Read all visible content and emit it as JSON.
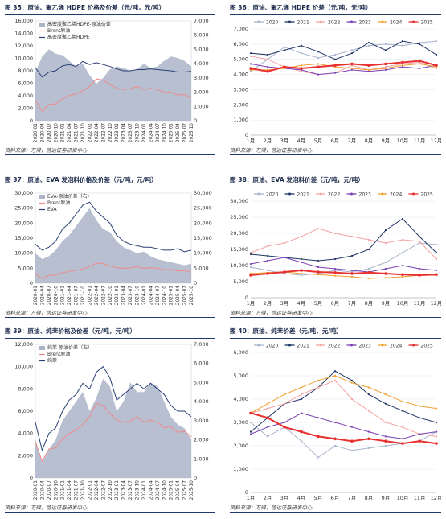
{
  "panels": [
    {
      "title": "图 35：原油、聚乙烯 HDPE 价格及价差（元/吨，元/吨）",
      "source": "资料来源：万得，信达证券研发中心",
      "chart_data": {
        "type": "area+line",
        "categories": [
          "2020-01",
          "2020-04",
          "2020-07",
          "2020-10",
          "2021-01",
          "2021-04",
          "2021-07",
          "2021-10",
          "2022-01",
          "2022-04",
          "2022-07",
          "2022-10",
          "2023-01",
          "2023-04",
          "2023-07",
          "2023-10",
          "2024-01",
          "2024-04",
          "2024-07",
          "2024-10",
          "2025-01",
          "2025-04",
          "2025-07",
          "2025-10"
        ],
        "ylim_left": [
          0,
          16000
        ],
        "yticks_left": [
          0,
          2000,
          4000,
          6000,
          8000,
          10000,
          12000,
          14000,
          16000
        ],
        "ylim_right": [
          0,
          7000
        ],
        "yticks_right": [
          0,
          1000,
          2000,
          3000,
          4000,
          5000,
          6000,
          7000
        ],
        "legend": "top-left",
        "series": [
          {
            "name": "高密度聚乙烯HDPE-原油价差",
            "kind": "area",
            "axis": "right",
            "color": "#aab4c8",
            "values": [
              3400,
              4500,
              5000,
              4700,
              4600,
              4200,
              3800,
              4000,
              3200,
              2600,
              3000,
              3600,
              3800,
              3700,
              3500,
              3600,
              4000,
              3700,
              3800,
              4200,
              4500,
              4400,
              4200,
              3800
            ]
          },
          {
            "name": "Brent原油",
            "kind": "line",
            "axis": "left",
            "color": "#f08a8a",
            "values": [
              3300,
              1500,
              2600,
              2700,
              3500,
              4000,
              4300,
              4800,
              5500,
              6700,
              6500,
              5800,
              5200,
              5000,
              5100,
              5500,
              5000,
              5200,
              5000,
              4500,
              4600,
              4100,
              4200,
              3700
            ]
          },
          {
            "name": "高密度聚乙烯HDPE",
            "kind": "line",
            "axis": "left",
            "color": "#2a3f73",
            "values": [
              8500,
              7000,
              7800,
              8000,
              8800,
              9000,
              8700,
              9500,
              9000,
              9300,
              9000,
              8700,
              8300,
              8000,
              8000,
              8200,
              8200,
              8300,
              8200,
              8100,
              8000,
              7800,
              7800,
              7900
            ]
          }
        ]
      }
    },
    {
      "title": "图 36：原油、聚乙烯 HDPE 价差（元/吨，元/吨）",
      "source": "资料来源：万得，信达证券研发中心",
      "chart_data": {
        "type": "line",
        "categories": [
          "1月",
          "2月",
          "3月",
          "4月",
          "5月",
          "6月",
          "7月",
          "8月",
          "9月",
          "10月",
          "11月",
          "12月"
        ],
        "ylim": [
          0,
          7000
        ],
        "yticks": [
          0,
          1000,
          2000,
          3000,
          4000,
          5000,
          6000,
          7000
        ],
        "legend": "top",
        "series": [
          {
            "name": "2020",
            "color": "#a9b3cc",
            "values": [
              4200,
              5000,
              5800,
              5400,
              5100,
              5300,
              5600,
              5900,
              6000,
              5900,
              6100,
              6200
            ]
          },
          {
            "name": "2021",
            "color": "#1f3566",
            "values": [
              5400,
              5300,
              5600,
              5900,
              5500,
              5000,
              5400,
              6100,
              5600,
              6200,
              6000,
              5300
            ]
          },
          {
            "name": "2022",
            "color": "#f4a3a3",
            "values": [
              5200,
              5000,
              4500,
              4200,
              4000,
              4100,
              4600,
              4300,
              4500,
              4700,
              4800,
              4400
            ]
          },
          {
            "name": "2023",
            "color": "#7b3fb5",
            "values": [
              4700,
              4500,
              4400,
              4300,
              4000,
              4100,
              4300,
              4200,
              4300,
              4500,
              4400,
              4600
            ]
          },
          {
            "name": "2024",
            "color": "#f0a030",
            "values": [
              4300,
              4300,
              4400,
              4600,
              4700,
              4500,
              4400,
              4300,
              4400,
              4600,
              4700,
              4500
            ]
          },
          {
            "name": "2025",
            "color": "#e83030",
            "values": [
              4400,
              4200,
              4500,
              4400,
              4500,
              4600,
              4700,
              4600,
              4700,
              4800,
              4900,
              4600
            ]
          }
        ]
      }
    },
    {
      "title": "图 37：原油、EVA 发泡料价格及价差（元/吨，元/吨）",
      "source": "资料来源：万得，信达证券研发中心",
      "chart_data": {
        "type": "area+line",
        "categories": [
          "2020-01",
          "2020-04",
          "2020-07",
          "2020-10",
          "2021-01",
          "2021-04",
          "2021-07",
          "2021-10",
          "2022-01",
          "2022-04",
          "2022-07",
          "2022-10",
          "2023-01",
          "2023-04",
          "2023-07",
          "2023-10",
          "2024-01",
          "2024-04",
          "2024-07",
          "2024-10",
          "2025-01",
          "2025-04",
          "2025-07",
          "2025-10"
        ],
        "ylim_left": [
          0,
          30000
        ],
        "yticks_left": [
          0,
          5000,
          10000,
          15000,
          20000,
          25000,
          30000
        ],
        "ylim_right": [
          0,
          30000
        ],
        "yticks_right": [
          0,
          5000,
          10000,
          15000,
          20000,
          25000,
          30000
        ],
        "legend": "top-left",
        "series": [
          {
            "name": "EVA-原油价差（右）",
            "kind": "area",
            "axis": "right",
            "color": "#aab4c8",
            "values": [
              10000,
              8000,
              9000,
              11000,
              14000,
              16000,
              19000,
              22000,
              25000,
              21000,
              18000,
              17000,
              14000,
              12000,
              11000,
              10000,
              10500,
              9000,
              8000,
              7500,
              7000,
              6500,
              6000,
              6500
            ]
          },
          {
            "name": "Brent原油",
            "kind": "line",
            "axis": "left",
            "color": "#f08a8a",
            "values": [
              3300,
              1500,
              2600,
              2700,
              3500,
              4000,
              4300,
              4800,
              5500,
              6700,
              6500,
              5800,
              5200,
              5000,
              5100,
              5500,
              5000,
              5200,
              5000,
              4500,
              4600,
              4100,
              4200,
              3700
            ]
          },
          {
            "name": "EVA",
            "kind": "line",
            "axis": "left",
            "color": "#2a3f73",
            "values": [
              13000,
              11000,
              12000,
              14000,
              18000,
              20000,
              23000,
              26000,
              27000,
              24000,
              22000,
              20000,
              16000,
              14000,
              13000,
              12500,
              12000,
              12000,
              11500,
              11000,
              11000,
              11500,
              10500,
              11000
            ]
          }
        ]
      }
    },
    {
      "title": "图 38：原油、EVA 发泡料价差（元/吨，元/吨）",
      "source": "资料来源：万得，信达证券研发中心",
      "chart_data": {
        "type": "line",
        "categories": [
          "1月",
          "2月",
          "3月",
          "4月",
          "5月",
          "6月",
          "7月",
          "8月",
          "9月",
          "10月",
          "11月",
          "12月"
        ],
        "ylim": [
          0,
          30000
        ],
        "yticks": [
          0,
          5000,
          10000,
          15000,
          20000,
          25000,
          30000
        ],
        "legend": "top",
        "series": [
          {
            "name": "2020",
            "color": "#a9b3cc",
            "values": [
              9500,
              8500,
              7500,
              7000,
              7500,
              8500,
              8000,
              9000,
              11000,
              14000,
              17000,
              16500
            ]
          },
          {
            "name": "2021",
            "color": "#1f3566",
            "values": [
              13500,
              13000,
              12500,
              12000,
              11500,
              12000,
              13000,
              15000,
              21000,
              24500,
              19000,
              14000
            ]
          },
          {
            "name": "2022",
            "color": "#f4a3a3",
            "values": [
              14000,
              16000,
              17000,
              19000,
              21500,
              20000,
              19000,
              18000,
              17000,
              18000,
              17500,
              12000
            ]
          },
          {
            "name": "2023",
            "color": "#7b3fb5",
            "values": [
              10500,
              11500,
              12500,
              11000,
              9500,
              9000,
              8500,
              8000,
              9000,
              10000,
              9000,
              8500
            ]
          },
          {
            "name": "2024",
            "color": "#f0a030",
            "values": [
              7500,
              7800,
              8000,
              7500,
              7200,
              6800,
              6500,
              6000,
              6200,
              6500,
              7000,
              7000
            ]
          },
          {
            "name": "2025",
            "color": "#e83030",
            "values": [
              7000,
              7500,
              8000,
              8500,
              8000,
              7800,
              7500,
              7800,
              7500,
              7200,
              7000,
              7200
            ]
          }
        ]
      }
    },
    {
      "title": "图 39：原油、纯苯价格及价差（元/吨，元/吨）",
      "source": "资料来源：万得，信达证券研发中心",
      "chart_data": {
        "type": "area+line",
        "categories": [
          "2020-01",
          "2020-04",
          "2020-07",
          "2020-10",
          "2021-01",
          "2021-04",
          "2021-07",
          "2021-10",
          "2022-01",
          "2022-04",
          "2022-07",
          "2022-10",
          "2023-01",
          "2023-04",
          "2023-07",
          "2023-10",
          "2024-01",
          "2024-04",
          "2024-07",
          "2024-10",
          "2025-01",
          "2025-04",
          "2025-07",
          "2025-10"
        ],
        "ylim_left": [
          0,
          12000
        ],
        "yticks_left": [
          0,
          2000,
          4000,
          6000,
          8000,
          10000,
          12000
        ],
        "ylim_right": [
          0,
          7000
        ],
        "yticks_right": [
          0,
          1000,
          2000,
          3000,
          4000,
          5000,
          6000,
          7000
        ],
        "legend": "top",
        "series": [
          {
            "name": "纯苯-原油价差（右）",
            "kind": "area",
            "axis": "right",
            "color": "#aab4c8",
            "values": [
              2000,
              800,
              1500,
              2000,
              3000,
              3500,
              4000,
              4500,
              3500,
              4200,
              5200,
              4800,
              3500,
              4000,
              5000,
              4500,
              4500,
              5000,
              4800,
              4000,
              3200,
              2800,
              2600,
              2000
            ]
          },
          {
            "name": "Brent原油",
            "kind": "line",
            "axis": "left",
            "color": "#f08a8a",
            "values": [
              3300,
              1500,
              2600,
              2700,
              3500,
              4000,
              4300,
              4800,
              5500,
              6700,
              6500,
              5800,
              5200,
              5000,
              5100,
              5500,
              5000,
              5200,
              5000,
              4500,
              4600,
              4100,
              4200,
              3700
            ]
          },
          {
            "name": "纯苯",
            "kind": "line",
            "axis": "left",
            "color": "#2a3f73",
            "values": [
              5000,
              2500,
              4000,
              4500,
              6000,
              7000,
              7500,
              8500,
              8000,
              9500,
              10000,
              9000,
              7000,
              7500,
              8000,
              8500,
              8000,
              8500,
              8000,
              7500,
              6500,
              6000,
              6000,
              5500
            ]
          }
        ]
      }
    },
    {
      "title": "图 40：原油、纯苯价差（元/吨，元/吨）",
      "source": "资料来源：万得，信达证券研发中心",
      "chart_data": {
        "type": "line",
        "categories": [
          "1月",
          "2月",
          "3月",
          "4月",
          "5月",
          "6月",
          "7月",
          "8月",
          "9月",
          "10月",
          "11月",
          "12月"
        ],
        "ylim": [
          0,
          6000
        ],
        "yticks": [
          0,
          1000,
          2000,
          3000,
          4000,
          5000,
          6000
        ],
        "legend": "top",
        "series": [
          {
            "name": "2020",
            "color": "#a9b3cc",
            "values": [
              3000,
              2400,
              2800,
              2200,
              1500,
              2000,
              1800,
              1900,
              2000,
              2100,
              2200,
              2600
            ]
          },
          {
            "name": "2021",
            "color": "#1f3566",
            "values": [
              2600,
              3200,
              3800,
              4000,
              4500,
              5200,
              4800,
              4200,
              3800,
              3500,
              3200,
              3000
            ]
          },
          {
            "name": "2022",
            "color": "#f4a3a3",
            "values": [
              3400,
              3600,
              3800,
              4200,
              4500,
              4800,
              4000,
              3500,
              3000,
              2800,
              2500,
              2400
            ]
          },
          {
            "name": "2023",
            "color": "#7b3fb5",
            "values": [
              2500,
              2800,
              3000,
              3400,
              3200,
              3000,
              2800,
              2600,
              2400,
              2300,
              2500,
              2600
            ]
          },
          {
            "name": "2024",
            "color": "#f0a030",
            "values": [
              3400,
              3800,
              4200,
              4500,
              4800,
              5000,
              4700,
              4500,
              4200,
              3900,
              3700,
              3600
            ]
          },
          {
            "name": "2025",
            "color": "#e83030",
            "values": [
              3400,
              3200,
              2800,
              2600,
              2400,
              2300,
              2200,
              2300,
              2200,
              2100,
              2200,
              2100
            ]
          }
        ]
      }
    }
  ]
}
